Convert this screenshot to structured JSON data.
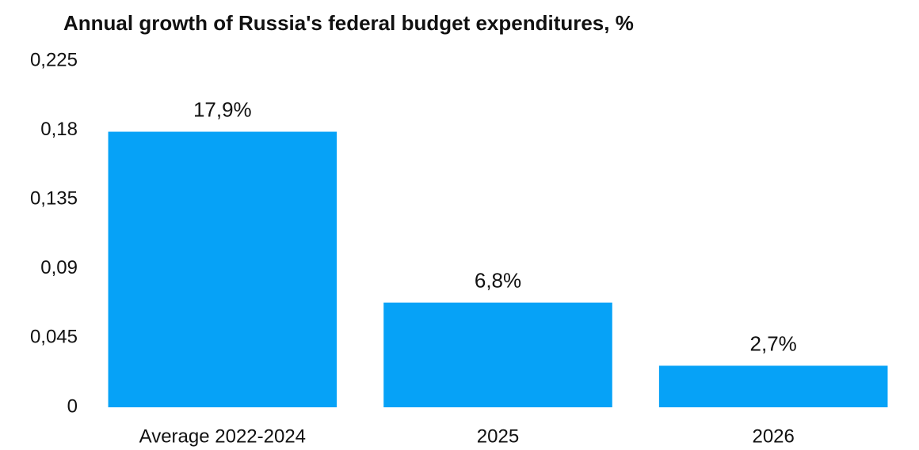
{
  "chart_data": {
    "type": "bar",
    "title": "Annual growth of Russia's federal budget expenditures, %",
    "categories": [
      "Average 2022-2024",
      "2025",
      "2026"
    ],
    "values": [
      0.179,
      0.068,
      0.027
    ],
    "value_labels": [
      "17,9%",
      "6,8%",
      "2,7%"
    ],
    "color": "#06a2f7",
    "ylim": [
      0,
      0.225
    ],
    "yticks": [
      0,
      {
        "value": 0.045,
        "label": "0,045"
      },
      {
        "value": 0.09,
        "label": "0,09"
      },
      {
        "value": 0.135,
        "label": "0,135"
      },
      {
        "value": 0.18,
        "label": "0,18"
      },
      {
        "value": 0.225,
        "label": "0,225"
      }
    ],
    "grid": false
  }
}
